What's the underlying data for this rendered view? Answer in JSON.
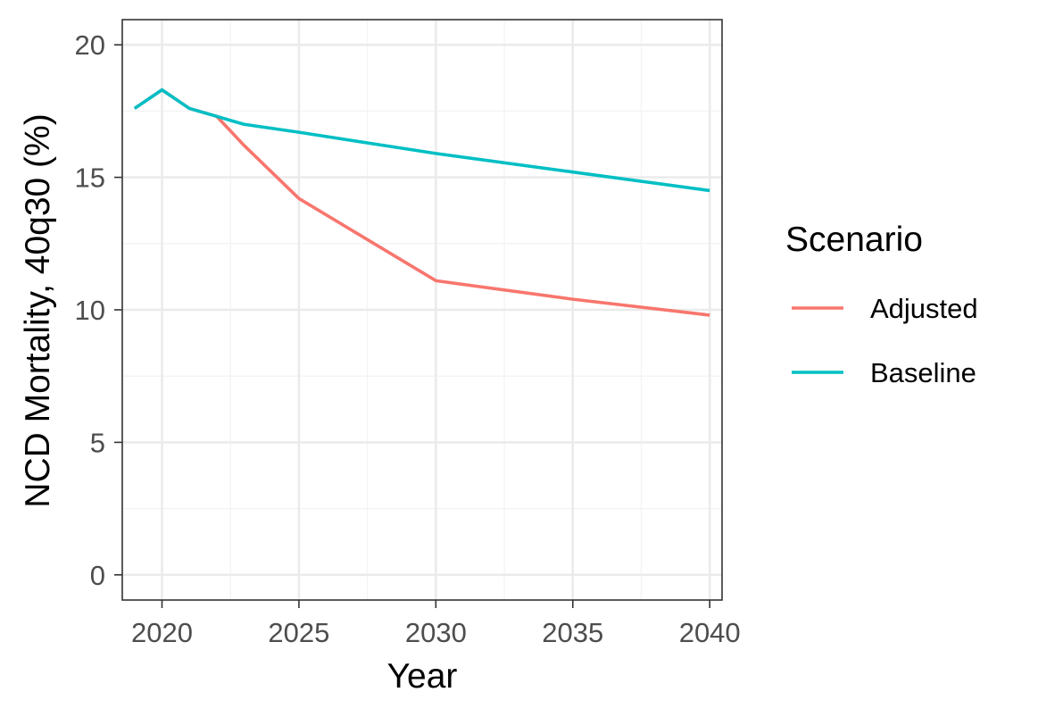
{
  "chart_data": {
    "type": "line",
    "xlabel": "Year",
    "ylabel": "NCD Mortality, 40q30 (%)",
    "xlim": [
      2018.55,
      2040.45
    ],
    "ylim": [
      -0.95,
      20.95
    ],
    "x_ticks": [
      2020,
      2025,
      2030,
      2035,
      2040
    ],
    "x_tick_labels": [
      "2020",
      "2025",
      "2030",
      "2035",
      "2040"
    ],
    "y_ticks": [
      0,
      5,
      10,
      15,
      20
    ],
    "y_tick_labels": [
      "0",
      "5",
      "10",
      "15",
      "20"
    ],
    "grid": true,
    "legend": {
      "title": "Scenario",
      "position": "right"
    },
    "series": [
      {
        "name": "Adjusted",
        "color": "#F8766D",
        "points": [
          {
            "x": 2019,
            "y": 17.6
          },
          {
            "x": 2020,
            "y": 18.3
          },
          {
            "x": 2021,
            "y": 17.6
          },
          {
            "x": 2022,
            "y": 17.3
          },
          {
            "x": 2023,
            "y": 16.2
          },
          {
            "x": 2025,
            "y": 14.2
          },
          {
            "x": 2030,
            "y": 11.1
          },
          {
            "x": 2035,
            "y": 10.4
          },
          {
            "x": 2040,
            "y": 9.8
          }
        ]
      },
      {
        "name": "Baseline",
        "color": "#00BFC4",
        "points": [
          {
            "x": 2019,
            "y": 17.6
          },
          {
            "x": 2020,
            "y": 18.3
          },
          {
            "x": 2021,
            "y": 17.6
          },
          {
            "x": 2022,
            "y": 17.3
          },
          {
            "x": 2023,
            "y": 17.0
          },
          {
            "x": 2025,
            "y": 16.7
          },
          {
            "x": 2030,
            "y": 15.9
          },
          {
            "x": 2035,
            "y": 15.2
          },
          {
            "x": 2040,
            "y": 14.5
          }
        ]
      }
    ]
  },
  "colors": {
    "panel_border": "#333333",
    "grid_major": "#EBEBEB",
    "grid_minor": "#F3F3F3",
    "tick_text": "#4D4D4D"
  }
}
